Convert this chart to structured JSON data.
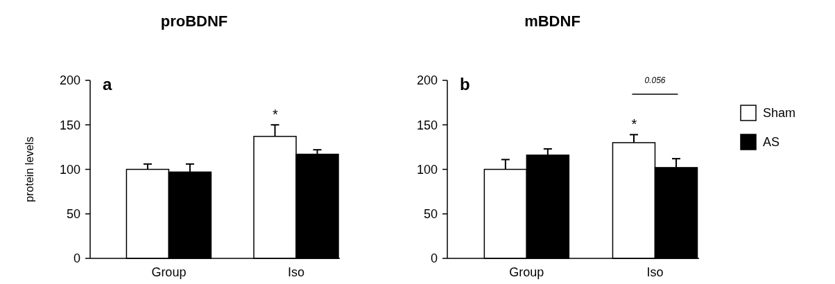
{
  "chart_data": [
    {
      "type": "bar",
      "title": "proBDNF",
      "ylabel": "protein levels",
      "categories": [
        "Group",
        "Iso"
      ],
      "ylim": [
        0,
        200
      ],
      "yticks": [
        0,
        50,
        100,
        150,
        200
      ],
      "grid": false,
      "legend": false,
      "series": [
        {
          "color": "#ffffff",
          "values": [
            100,
            137
          ],
          "errors": [
            [
              100,
              106
            ],
            [
              137,
              150
            ]
          ]
        },
        {
          "color": "#000000",
          "values": [
            97,
            117
          ],
          "errors": [
            [
              97,
              106
            ],
            [
              117,
              122
            ]
          ]
        }
      ],
      "annotations": [
        "a",
        "*"
      ]
    },
    {
      "type": "bar",
      "title": "mBDNF",
      "categories": [
        "Group",
        "Iso"
      ],
      "ylim": [
        0,
        200
      ],
      "yticks": [
        0,
        50,
        100,
        150,
        200
      ],
      "grid": false,
      "legend": "right",
      "series": [
        {
          "name": "Sham",
          "color": "#ffffff",
          "values": [
            100,
            130
          ],
          "errors": [
            [
              100,
              111
            ],
            [
              130,
              139
            ]
          ]
        },
        {
          "name": "AS",
          "color": "#000000",
          "values": [
            116,
            102
          ],
          "errors": [
            [
              116,
              123
            ],
            [
              102,
              112
            ]
          ]
        }
      ],
      "annotations": [
        "b",
        "*",
        "0.056"
      ]
    }
  ]
}
